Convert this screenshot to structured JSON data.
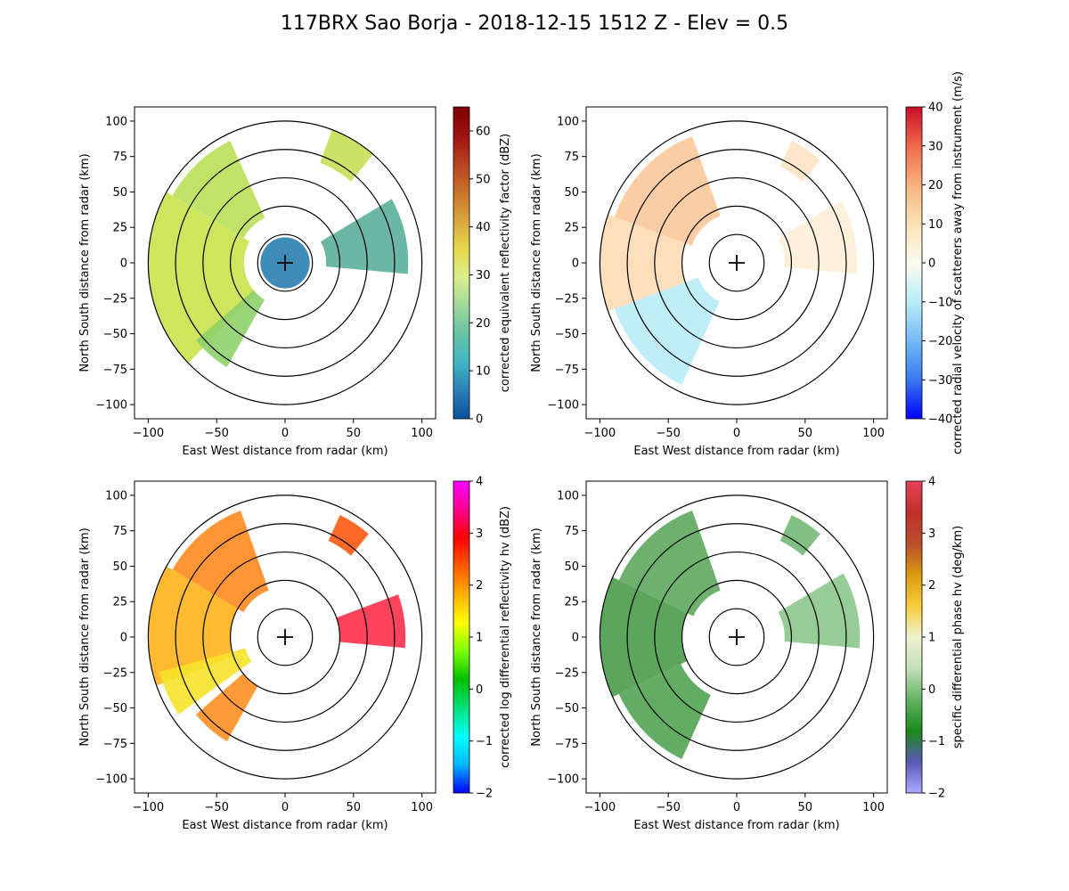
{
  "figure_title": "117BRX Sao Borja - 2018-12-15 1512 Z -  Elev = 0.5",
  "chart_data": [
    {
      "type": "ppi-radar",
      "xlabel": "East West distance from radar (km)",
      "ylabel": "North South distance from radar (km)",
      "xlim": [
        -110,
        110
      ],
      "ylim": [
        -110,
        110
      ],
      "xticks": [
        -100,
        -50,
        0,
        50,
        100
      ],
      "yticks": [
        -100,
        -75,
        -50,
        -25,
        0,
        25,
        50,
        75,
        100
      ],
      "range_rings_km": [
        20,
        40,
        60,
        80,
        100
      ],
      "colorbar": {
        "label": "corrected equivalent reflectivity factor (dBZ)",
        "min": 0,
        "max": 65,
        "ticks": [
          0,
          10,
          20,
          30,
          40,
          50,
          60
        ],
        "colors": [
          "#08519c",
          "#2c7fb8",
          "#41b6c4",
          "#66c2a4",
          "#a1d99b",
          "#d9ef8b",
          "#e6d84a",
          "#d8a53b",
          "#c9722b",
          "#b8421f",
          "#a01010",
          "#7f0000"
        ]
      },
      "echoes": [
        {
          "az_start": 225,
          "az_end": 300,
          "r_min": 30,
          "r_max": 100,
          "color": "#c9e24b"
        },
        {
          "az_start": 300,
          "az_end": 335,
          "r_min": 35,
          "r_max": 95,
          "color": "#b9df57"
        },
        {
          "az_start": 210,
          "az_end": 230,
          "r_min": 30,
          "r_max": 85,
          "color": "#8fd06a"
        },
        {
          "az_start": 20,
          "az_end": 40,
          "r_min": 75,
          "r_max": 100,
          "color": "#c6df55"
        },
        {
          "az_start": 60,
          "az_end": 95,
          "r_min": 30,
          "r_max": 90,
          "color": "#5cae9a"
        },
        {
          "az_start": 0,
          "az_end": 360,
          "r_min": 0,
          "r_max": 18,
          "color": "#2b7fb0"
        }
      ]
    },
    {
      "type": "ppi-radar",
      "xlabel": "East West distance from radar (km)",
      "ylabel": "North South distance from radar (km)",
      "xlim": [
        -110,
        110
      ],
      "ylim": [
        -110,
        110
      ],
      "xticks": [
        -100,
        -50,
        0,
        50,
        100
      ],
      "yticks": [
        -100,
        -75,
        -50,
        -25,
        0,
        25,
        50,
        75,
        100
      ],
      "range_rings_km": [
        20,
        40,
        60,
        80,
        100
      ],
      "colorbar": {
        "label": "corrected radial velocity of scatterers away from instrument (m/s)",
        "min": -40,
        "max": 40,
        "ticks": [
          -40,
          -30,
          -20,
          -10,
          0,
          10,
          20,
          30,
          40
        ],
        "colors": [
          "#0000ff",
          "#3a78f0",
          "#74baf5",
          "#b9ecf7",
          "#fbfbf0",
          "#fbe3b8",
          "#f7b27c",
          "#ef6a4a",
          "#cc0d2b"
        ]
      },
      "echoes": [
        {
          "az_start": 290,
          "az_end": 340,
          "r_min": 35,
          "r_max": 95,
          "color": "#fcc89a"
        },
        {
          "az_start": 250,
          "az_end": 290,
          "r_min": 40,
          "r_max": 100,
          "color": "#fddcb5"
        },
        {
          "az_start": 205,
          "az_end": 250,
          "r_min": 30,
          "r_max": 95,
          "color": "#b8ecf7"
        },
        {
          "az_start": 25,
          "az_end": 40,
          "r_min": 75,
          "r_max": 95,
          "color": "#fde3c3"
        },
        {
          "az_start": 60,
          "az_end": 95,
          "r_min": 35,
          "r_max": 88,
          "color": "#fdf0d8"
        }
      ]
    },
    {
      "type": "ppi-radar",
      "xlabel": "East West distance from radar (km)",
      "ylabel": "North South distance from radar (km)",
      "xlim": [
        -110,
        110
      ],
      "ylim": [
        -110,
        110
      ],
      "xticks": [
        -100,
        -50,
        0,
        50,
        100
      ],
      "yticks": [
        -100,
        -75,
        -50,
        -25,
        0,
        25,
        50,
        75,
        100
      ],
      "range_rings_km": [
        20,
        40,
        60,
        80,
        100
      ],
      "colorbar": {
        "label": "corrected log differential reflectivity hv (dBZ)",
        "min": -2,
        "max": 4,
        "ticks": [
          -2,
          -1,
          0,
          1,
          2,
          3,
          4
        ],
        "colors": [
          "#0000ff",
          "#00b7ff",
          "#00ffff",
          "#00e07a",
          "#00c000",
          "#7bff00",
          "#ffff00",
          "#ffae00",
          "#ff5a00",
          "#ff0000",
          "#ff0090",
          "#ff00ff"
        ]
      },
      "echoes": [
        {
          "az_start": 300,
          "az_end": 340,
          "r_min": 35,
          "r_max": 95,
          "color": "#ff8a1e"
        },
        {
          "az_start": 250,
          "az_end": 300,
          "r_min": 40,
          "r_max": 100,
          "color": "#ffb21a"
        },
        {
          "az_start": 235,
          "az_end": 255,
          "r_min": 30,
          "r_max": 95,
          "color": "#f6e32a"
        },
        {
          "az_start": 210,
          "az_end": 230,
          "r_min": 40,
          "r_max": 85,
          "color": "#ff8f24"
        },
        {
          "az_start": 25,
          "az_end": 40,
          "r_min": 75,
          "r_max": 95,
          "color": "#ff5a12"
        },
        {
          "az_start": 70,
          "az_end": 95,
          "r_min": 40,
          "r_max": 88,
          "color": "#ff2f4a"
        }
      ]
    },
    {
      "type": "ppi-radar",
      "xlabel": "East West distance from radar (km)",
      "ylabel": "North South distance from radar (km)",
      "xlim": [
        -110,
        110
      ],
      "ylim": [
        -110,
        110
      ],
      "xticks": [
        -100,
        -50,
        0,
        50,
        100
      ],
      "yticks": [
        -100,
        -75,
        -50,
        -25,
        0,
        25,
        50,
        75,
        100
      ],
      "range_rings_km": [
        20,
        40,
        60,
        80,
        100
      ],
      "colorbar": {
        "label": "specific differential phase hv (deg/km)",
        "min": -2,
        "max": 4,
        "ticks": [
          -2,
          -1,
          0,
          1,
          2,
          3,
          4
        ],
        "colors": [
          "#aaaaff",
          "#5959b5",
          "#1a8a1a",
          "#66b366",
          "#c3e0bb",
          "#f1f1d0",
          "#f6cd3a",
          "#d99a10",
          "#b84d2b",
          "#c0312b",
          "#e8405a"
        ]
      },
      "echoes": [
        {
          "az_start": 295,
          "az_end": 340,
          "r_min": 35,
          "r_max": 95,
          "color": "#5ea95e"
        },
        {
          "az_start": 245,
          "az_end": 295,
          "r_min": 40,
          "r_max": 100,
          "color": "#4a9c4a"
        },
        {
          "az_start": 205,
          "az_end": 245,
          "r_min": 45,
          "r_max": 95,
          "color": "#52a352"
        },
        {
          "az_start": 25,
          "az_end": 40,
          "r_min": 75,
          "r_max": 95,
          "color": "#74b874"
        },
        {
          "az_start": 60,
          "az_end": 95,
          "r_min": 35,
          "r_max": 90,
          "color": "#8cc68c"
        }
      ]
    }
  ]
}
